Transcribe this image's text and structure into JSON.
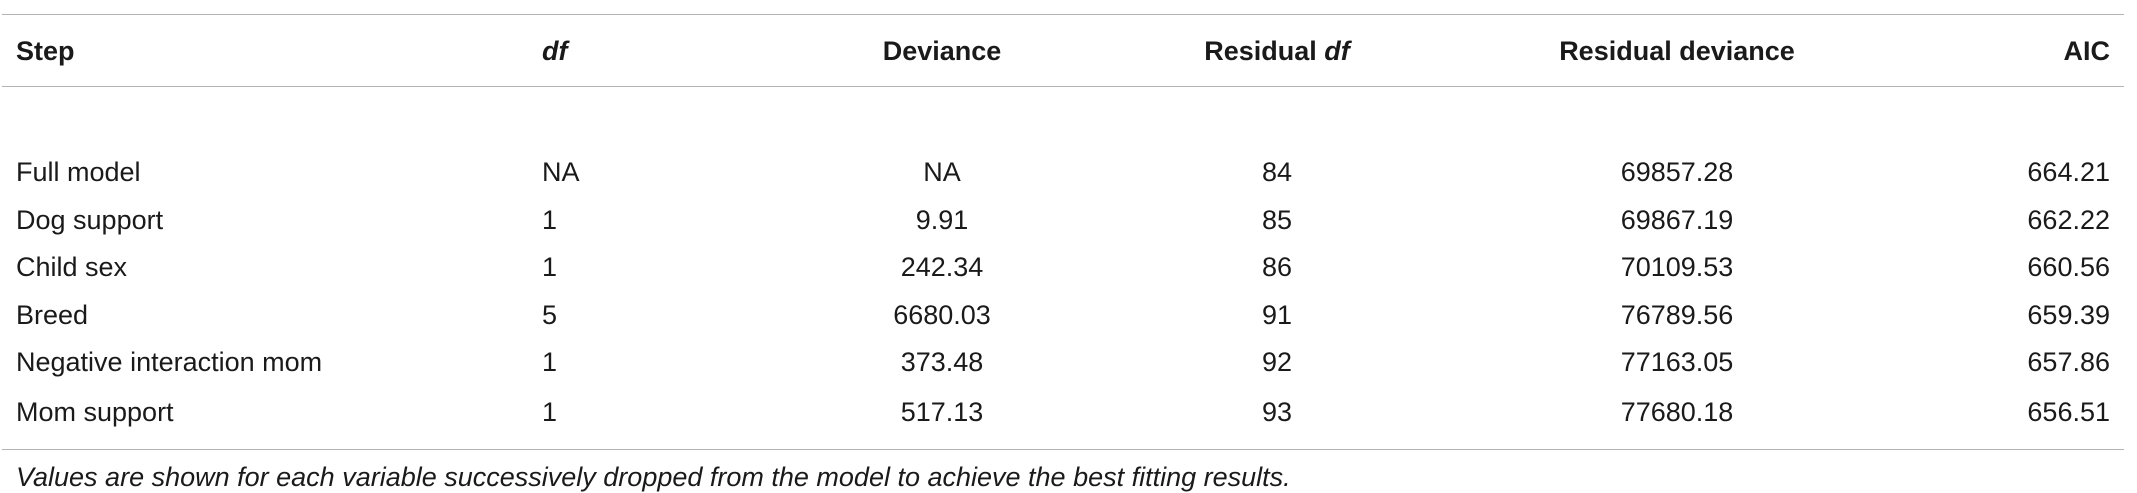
{
  "table": {
    "headers": {
      "step": "Step",
      "df": "df",
      "deviance": "Deviance",
      "residual_df_prefix": "Residual ",
      "residual_df_italic": "df",
      "residual_deviance": "Residual deviance",
      "aic": "AIC"
    },
    "rows": [
      {
        "step": "Full model",
        "df": "NA",
        "deviance": "NA",
        "residual_df": "84",
        "residual_deviance": "69857.28",
        "aic": "664.21"
      },
      {
        "step": "Dog support",
        "df": "1",
        "deviance": "9.91",
        "residual_df": "85",
        "residual_deviance": "69867.19",
        "aic": "662.22"
      },
      {
        "step": "Child sex",
        "df": "1",
        "deviance": "242.34",
        "residual_df": "86",
        "residual_deviance": "70109.53",
        "aic": "660.56"
      },
      {
        "step": "Breed",
        "df": "5",
        "deviance": "6680.03",
        "residual_df": "91",
        "residual_deviance": "76789.56",
        "aic": "659.39"
      },
      {
        "step": "Negative interaction mom",
        "df": "1",
        "deviance": "373.48",
        "residual_df": "92",
        "residual_deviance": "77163.05",
        "aic": "657.86"
      },
      {
        "step": "Mom support",
        "df": "1",
        "deviance": "517.13",
        "residual_df": "93",
        "residual_deviance": "77680.18",
        "aic": "656.51"
      }
    ],
    "note": "Values are shown for each variable successively dropped from the model to achieve the best fitting results."
  }
}
